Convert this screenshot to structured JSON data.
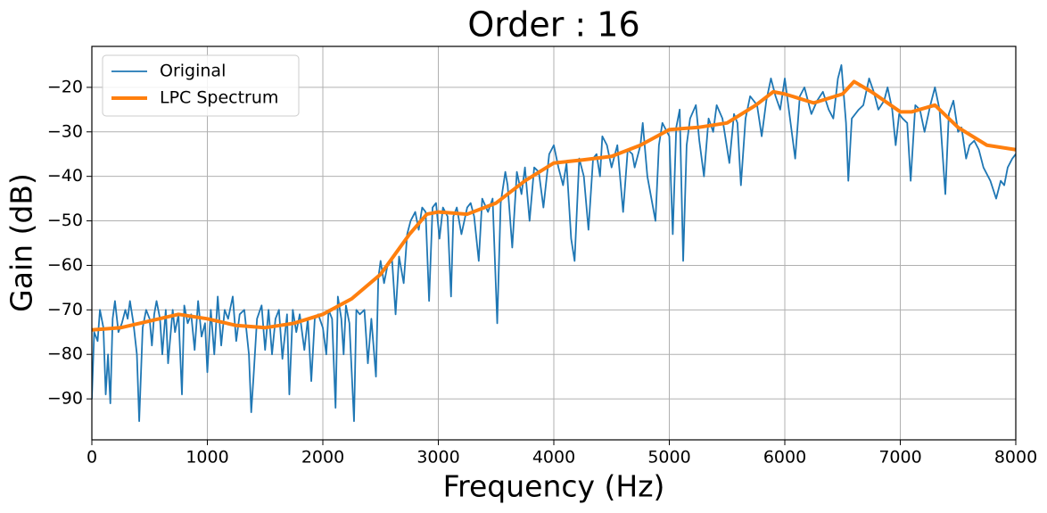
{
  "chart_data": {
    "type": "line",
    "title": "Order : 16",
    "x_label": "Frequency (Hz)",
    "y_label": "Gain (dB)",
    "xlim": [
      0,
      8000
    ],
    "ylim": [
      -99.2,
      -10.8
    ],
    "xticks": [
      0,
      1000,
      2000,
      3000,
      4000,
      5000,
      6000,
      7000,
      8000
    ],
    "yticks": [
      {
        "value": -90,
        "label": "−90"
      },
      {
        "value": -80,
        "label": "−80"
      },
      {
        "value": -70,
        "label": "−70"
      },
      {
        "value": -60,
        "label": "−60"
      },
      {
        "value": -50,
        "label": "−50"
      },
      {
        "value": -40,
        "label": "−40"
      },
      {
        "value": -30,
        "label": "−30"
      },
      {
        "value": -20,
        "label": "−20"
      }
    ],
    "grid": true,
    "legend": "upper left",
    "series": [
      {
        "name": "Original",
        "color": "#1f77b4",
        "width": 1.8,
        "x": [
          0,
          20,
          50,
          70,
          100,
          120,
          140,
          160,
          180,
          200,
          230,
          260,
          290,
          310,
          330,
          360,
          390,
          410,
          440,
          470,
          500,
          520,
          540,
          560,
          590,
          610,
          640,
          660,
          700,
          720,
          750,
          780,
          800,
          830,
          860,
          890,
          920,
          950,
          980,
          1000,
          1030,
          1060,
          1090,
          1120,
          1150,
          1180,
          1220,
          1250,
          1280,
          1320,
          1360,
          1380,
          1400,
          1430,
          1470,
          1500,
          1530,
          1560,
          1590,
          1620,
          1650,
          1690,
          1710,
          1740,
          1770,
          1800,
          1840,
          1870,
          1900,
          1930,
          1960,
          2000,
          2030,
          2050,
          2080,
          2110,
          2130,
          2160,
          2180,
          2200,
          2230,
          2270,
          2290,
          2320,
          2360,
          2390,
          2420,
          2460,
          2480,
          2500,
          2530,
          2560,
          2600,
          2630,
          2660,
          2700,
          2730,
          2760,
          2800,
          2830,
          2860,
          2890,
          2920,
          2950,
          2980,
          3010,
          3040,
          3080,
          3110,
          3130,
          3160,
          3200,
          3250,
          3280,
          3310,
          3350,
          3380,
          3430,
          3470,
          3510,
          3540,
          3580,
          3600,
          3640,
          3680,
          3720,
          3750,
          3790,
          3830,
          3870,
          3910,
          3960,
          4000,
          4040,
          4080,
          4110,
          4150,
          4180,
          4220,
          4260,
          4300,
          4340,
          4370,
          4400,
          4420,
          4460,
          4500,
          4550,
          4600,
          4640,
          4680,
          4700,
          4750,
          4770,
          4810,
          4880,
          4910,
          4940,
          5000,
          5030,
          5060,
          5090,
          5120,
          5150,
          5180,
          5230,
          5260,
          5300,
          5340,
          5380,
          5410,
          5460,
          5520,
          5560,
          5590,
          5620,
          5660,
          5700,
          5760,
          5800,
          5840,
          5880,
          5920,
          5960,
          6000,
          6050,
          6090,
          6130,
          6170,
          6230,
          6280,
          6330,
          6380,
          6420,
          6460,
          6490,
          6530,
          6550,
          6580,
          6610,
          6640,
          6680,
          6730,
          6770,
          6810,
          6860,
          6890,
          6930,
          6960,
          6990,
          7020,
          7060,
          7090,
          7130,
          7170,
          7210,
          7260,
          7300,
          7340,
          7390,
          7420,
          7460,
          7500,
          7530,
          7570,
          7600,
          7640,
          7680,
          7720,
          7780,
          7830,
          7870,
          7900,
          7930,
          7970,
          8000
        ],
        "values": [
          -90,
          -75,
          -77,
          -70,
          -74,
          -89,
          -80,
          -91,
          -72,
          -68,
          -75,
          -73,
          -70,
          -72,
          -68,
          -73,
          -80,
          -95,
          -74,
          -70,
          -72,
          -78,
          -71,
          -68,
          -72,
          -80,
          -70,
          -82,
          -70,
          -75,
          -71,
          -89,
          -69,
          -73,
          -71,
          -79,
          -68,
          -76,
          -73,
          -84,
          -70,
          -80,
          -67,
          -78,
          -70,
          -72,
          -67,
          -77,
          -71,
          -70,
          -80,
          -93,
          -85,
          -72,
          -69,
          -79,
          -70,
          -80,
          -72,
          -70,
          -81,
          -71,
          -89,
          -70,
          -75,
          -71,
          -79,
          -72,
          -86,
          -72,
          -71,
          -74,
          -80,
          -70,
          -72,
          -92,
          -67,
          -72,
          -80,
          -69,
          -73,
          -95,
          -70,
          -71,
          -70,
          -82,
          -72,
          -85,
          -63,
          -59,
          -64,
          -60,
          -59,
          -71,
          -58,
          -64,
          -53,
          -50,
          -48,
          -52,
          -47,
          -48,
          -68,
          -47,
          -46,
          -54,
          -47,
          -49,
          -67,
          -49,
          -47,
          -53,
          -47,
          -46,
          -49,
          -59,
          -45,
          -48,
          -45,
          -73,
          -46,
          -39,
          -42,
          -56,
          -39,
          -44,
          -38,
          -50,
          -38,
          -39,
          -47,
          -35,
          -33,
          -38,
          -42,
          -37,
          -54,
          -59,
          -36,
          -40,
          -52,
          -36,
          -35,
          -40,
          -31,
          -33,
          -38,
          -33,
          -48,
          -34,
          -35,
          -38,
          -33,
          -28,
          -40,
          -50,
          -33,
          -28,
          -31,
          -53,
          -29,
          -25,
          -59,
          -33,
          -27,
          -24,
          -32,
          -40,
          -27,
          -30,
          -24,
          -27,
          -37,
          -26,
          -28,
          -42,
          -27,
          -22,
          -24,
          -31,
          -23,
          -18,
          -22,
          -25,
          -18,
          -28,
          -36,
          -22,
          -20,
          -26,
          -23,
          -21,
          -25,
          -27,
          -18,
          -15,
          -28,
          -41,
          -27,
          -26,
          -25,
          -24,
          -18,
          -21,
          -25,
          -23,
          -20,
          -25,
          -33,
          -26,
          -27,
          -28,
          -41,
          -24,
          -25,
          -30,
          -24,
          -20,
          -25,
          -44,
          -26,
          -23,
          -30,
          -29,
          -36,
          -33,
          -32,
          -34,
          -38,
          -41,
          -45,
          -41,
          -42,
          -38,
          -36,
          -35
        ]
      },
      {
        "name": "LPC Spectrum",
        "color": "#ff7f0e",
        "width": 4,
        "x": [
          0,
          250,
          500,
          750,
          1000,
          1250,
          1500,
          1750,
          2000,
          2250,
          2500,
          2750,
          2900,
          3000,
          3250,
          3500,
          3750,
          4000,
          4250,
          4500,
          4750,
          5000,
          5250,
          5500,
          5750,
          5900,
          6000,
          6250,
          6500,
          6600,
          6750,
          7000,
          7100,
          7300,
          7500,
          7750,
          8000
        ],
        "values": [
          -74.5,
          -74,
          -72.5,
          -71,
          -72,
          -73.5,
          -74,
          -73,
          -71,
          -67.5,
          -62,
          -53,
          -48.5,
          -48,
          -48.5,
          -46,
          -41,
          -37,
          -36.3,
          -35.5,
          -33,
          -29.5,
          -29,
          -28,
          -24,
          -21,
          -21.5,
          -23.5,
          -21.5,
          -18.7,
          -21,
          -25.5,
          -25.5,
          -24,
          -29,
          -33,
          -34
        ]
      }
    ]
  }
}
